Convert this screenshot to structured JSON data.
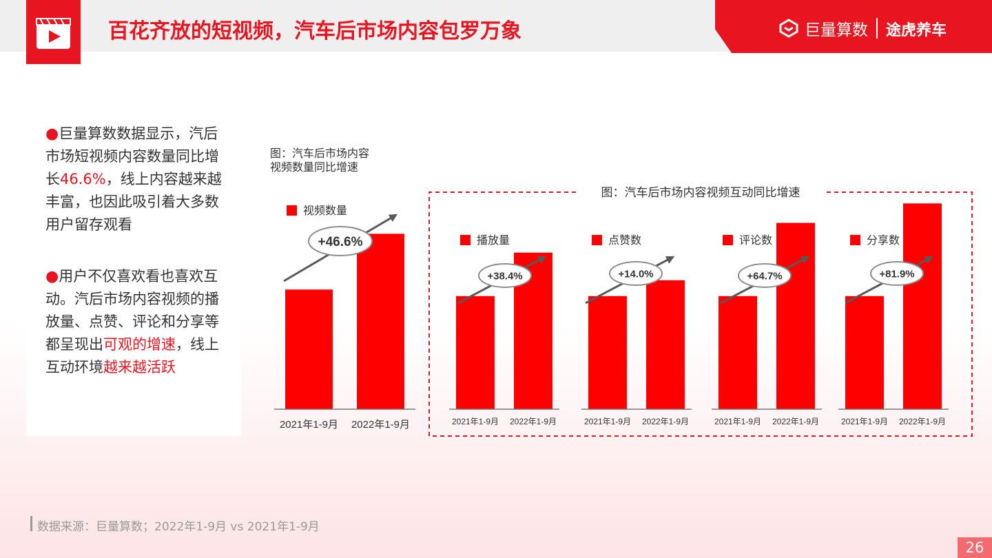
{
  "header": {
    "title": "百花齐放的短视频，汽车后市场内容包罗万象",
    "brand_left": "巨量算数",
    "brand_right": "途虎养车"
  },
  "sidebar": {
    "p1_pre": "巨量算数数据显示，汽后市场短视频内容数量同比增长",
    "p1_hl": "46.6%",
    "p1_post": "，线上内容越来越丰富，也因此吸引着大多数用户留存观看",
    "p2_pre": "用户不仅喜欢看也喜欢互动。汽后市场内容视频的播放量、点赞、评论和分享等都呈现出",
    "p2_hl1": "可观的增速",
    "p2_mid": "，线上互动环境",
    "p2_hl2": "越来越活跃"
  },
  "chart_data": [
    {
      "type": "bar",
      "title": "图：汽车后市场内容视频数量同比增速",
      "title_line1": "图：汽车后市场内容",
      "title_line2": "视频数量同比增速",
      "legend": "视频数量",
      "categories": [
        "2021年1-9月",
        "2022年1-9月"
      ],
      "values": [
        100,
        146.6
      ],
      "growth_label": "+46.6%"
    },
    {
      "type": "bar",
      "title": "图：汽车后市场内容视频互动同比增速",
      "panels": [
        {
          "legend": "播放量",
          "categories": [
            "2021年1-9月",
            "2022年1-9月"
          ],
          "values": [
            100,
            138.4
          ],
          "growth_label": "+38.4%"
        },
        {
          "legend": "点赞数",
          "categories": [
            "2021年1-9月",
            "2022年1-9月"
          ],
          "values": [
            100,
            114.0
          ],
          "growth_label": "+14.0%"
        },
        {
          "legend": "评论数",
          "categories": [
            "2021年1-9月",
            "2022年1-9月"
          ],
          "values": [
            100,
            164.7
          ],
          "growth_label": "+64.7%"
        },
        {
          "legend": "分享数",
          "categories": [
            "2021年1-9月",
            "2022年1-9月"
          ],
          "values": [
            100,
            181.9
          ],
          "growth_label": "+81.9%"
        }
      ]
    }
  ],
  "footer": {
    "source": "数据来源：巨量算数；2022年1-9月 vs 2021年1-9月",
    "page": "26"
  },
  "colors": {
    "accent": "#e8141f",
    "bar": "#ff0000",
    "arrow": "#595959"
  }
}
